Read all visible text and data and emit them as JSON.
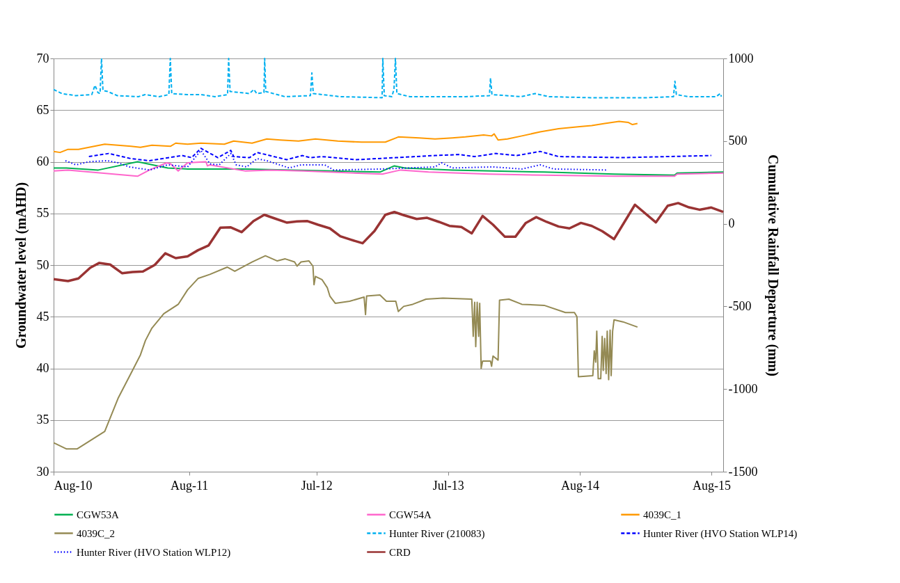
{
  "chart_data": {
    "type": "line",
    "ylabel": "Groundwater level (mAHD)",
    "y2label": "Cumulative Rainfall Departure (mm)",
    "xlim": [
      "2010-08-01",
      "2015-09-03"
    ],
    "xticks": [
      {
        "value": "2010-08-01",
        "label": "Aug-10"
      },
      {
        "value": "2011-08-12",
        "label": "Aug-11"
      },
      {
        "value": "2012-07-31",
        "label": "Jul-12"
      },
      {
        "value": "2013-07-31",
        "label": "Jul-13"
      },
      {
        "value": "2014-08-01",
        "label": "Aug-14"
      },
      {
        "value": "2015-08-01",
        "label": "Aug-15"
      }
    ],
    "ylim": [
      30,
      70
    ],
    "yticks": [
      30,
      35,
      40,
      45,
      50,
      55,
      60,
      65,
      70
    ],
    "y2lim": [
      -1500,
      1000
    ],
    "y2ticks": [
      -1500,
      -1000,
      -500,
      0,
      500,
      1000
    ],
    "grid": "y",
    "legend": "bottom",
    "series": [
      {
        "name": "CGW53A",
        "color": "#00b050",
        "x": [
          "2010-08-01",
          "2010-09-06",
          "2010-12-03",
          "2011-03-22",
          "2011-06-14",
          "2011-08-08",
          "2012-01-16",
          "2013-01-23",
          "2013-03-04",
          "2013-04-02",
          "2013-08-12",
          "2014-04-24",
          "2014-11-04",
          "2015-04-21",
          "2015-04-28",
          "2015-09-03"
        ],
        "values": [
          59.4,
          59.4,
          59.2,
          60.0,
          59.4,
          59.3,
          59.3,
          59.0,
          59.6,
          59.4,
          59.2,
          59.0,
          58.8,
          58.7,
          58.9,
          59.0
        ]
      },
      {
        "name": "CGW54A",
        "color": "#ff66cc",
        "x": [
          "2010-08-01",
          "2010-09-10",
          "2011-03-22",
          "2011-04-24",
          "2011-06-11",
          "2011-06-22",
          "2011-07-13",
          "2011-08-08",
          "2011-09-28",
          "2011-10-02",
          "2011-10-09",
          "2012-01-16",
          "2012-03-26",
          "2012-06-25",
          "2013-01-30",
          "2013-03-08",
          "2013-03-22",
          "2013-06-07",
          "2013-11-22",
          "2014-04-24",
          "2014-11-04",
          "2015-04-21",
          "2015-04-28",
          "2015-09-03"
        ],
        "values": [
          59.1,
          59.2,
          58.6,
          59.2,
          59.9,
          59.8,
          59.1,
          59.9,
          60.0,
          59.6,
          59.7,
          59.1,
          59.2,
          59.1,
          58.8,
          59.1,
          59.2,
          59.0,
          58.8,
          58.7,
          58.6,
          58.6,
          58.8,
          58.9
        ]
      },
      {
        "name": "4039C_1",
        "color": "#ff9900",
        "x": [
          "2010-08-01",
          "2010-08-19",
          "2010-09-10",
          "2010-10-09",
          "2010-12-21",
          "2011-03-04",
          "2011-03-30",
          "2011-05-01",
          "2011-06-22",
          "2011-07-06",
          "2011-08-08",
          "2011-09-14",
          "2011-11-18",
          "2011-12-14",
          "2012-02-03",
          "2012-03-15",
          "2012-04-21",
          "2012-06-11",
          "2012-07-28",
          "2012-09-28",
          "2012-12-03",
          "2013-02-07",
          "2013-03-08",
          "2013-03-15",
          "2013-05-12",
          "2013-06-25",
          "2013-08-12",
          "2013-09-17",
          "2013-11-07",
          "2013-11-29",
          "2013-12-06",
          "2013-12-17",
          "2014-01-12",
          "2014-02-21",
          "2014-04-13",
          "2014-06-03",
          "2014-08-01",
          "2014-09-03",
          "2014-10-09",
          "2014-11-18",
          "2014-12-14",
          "2014-12-25",
          "2015-01-08"
        ],
        "values": [
          61.0,
          60.9,
          61.2,
          61.2,
          61.7,
          61.5,
          61.4,
          61.6,
          61.5,
          61.8,
          61.7,
          61.8,
          61.7,
          62.0,
          61.8,
          62.2,
          62.1,
          62.0,
          62.2,
          62.0,
          61.9,
          61.9,
          62.3,
          62.4,
          62.3,
          62.2,
          62.3,
          62.4,
          62.6,
          62.5,
          62.7,
          62.1,
          62.2,
          62.5,
          62.9,
          63.2,
          63.4,
          63.5,
          63.7,
          63.9,
          63.8,
          63.6,
          63.7
        ]
      },
      {
        "name": "4039C_2",
        "color": "#948a54",
        "x": [
          "2010-08-01",
          "2010-09-06",
          "2010-10-05",
          "2010-12-21",
          "2011-01-27",
          "2011-03-08",
          "2011-03-30",
          "2011-04-13",
          "2011-05-01",
          "2011-06-03",
          "2011-07-13",
          "2011-08-08",
          "2011-09-06",
          "2011-10-09",
          "2011-11-26",
          "2011-12-17",
          "2012-02-03",
          "2012-03-11",
          "2012-04-13",
          "2012-05-05",
          "2012-05-31",
          "2012-06-07",
          "2012-06-18",
          "2012-07-10",
          "2012-07-21",
          "2012-07-24",
          "2012-07-28",
          "2012-08-15",
          "2012-08-30",
          "2012-09-06",
          "2012-09-21",
          "2012-10-31",
          "2012-12-10",
          "2012-12-14",
          "2012-12-17",
          "2013-01-23",
          "2013-02-10",
          "2013-03-08",
          "2013-03-15",
          "2013-03-30",
          "2013-04-24",
          "2013-05-31",
          "2013-07-17",
          "2013-10-05",
          "2013-10-09",
          "2013-10-13",
          "2013-10-16",
          "2013-10-20",
          "2013-10-24",
          "2013-10-27",
          "2013-10-31",
          "2013-11-04",
          "2013-11-26",
          "2013-11-29",
          "2013-12-03",
          "2013-12-17",
          "2013-12-21",
          "2014-01-16",
          "2014-02-21",
          "2014-04-24",
          "2014-06-22",
          "2014-07-17",
          "2014-07-24",
          "2014-07-28",
          "2014-09-06",
          "2014-09-10",
          "2014-09-14",
          "2014-09-17",
          "2014-09-21",
          "2014-09-28",
          "2014-10-02",
          "2014-10-05",
          "2014-10-09",
          "2014-10-13",
          "2014-10-16",
          "2014-10-20",
          "2014-10-24",
          "2014-10-27",
          "2014-10-31",
          "2014-11-04",
          "2014-11-29",
          "2015-01-08"
        ],
        "values": [
          32.8,
          32.2,
          32.2,
          33.9,
          37.1,
          39.8,
          41.3,
          42.7,
          43.9,
          45.3,
          46.2,
          47.6,
          48.7,
          49.1,
          49.8,
          49.4,
          50.3,
          50.9,
          50.4,
          50.6,
          50.3,
          49.9,
          50.3,
          50.4,
          49.9,
          48.1,
          48.9,
          48.6,
          47.8,
          47.0,
          46.3,
          46.5,
          46.9,
          45.2,
          47.0,
          47.1,
          46.5,
          46.5,
          45.5,
          46.0,
          46.2,
          46.7,
          46.8,
          46.7,
          43.1,
          46.4,
          42.1,
          46.4,
          43.1,
          46.3,
          40.0,
          40.7,
          40.7,
          40.2,
          41.2,
          40.8,
          46.6,
          46.7,
          46.2,
          46.1,
          45.4,
          45.4,
          45.0,
          39.2,
          39.3,
          41.7,
          40.6,
          43.6,
          39.0,
          39.0,
          43.1,
          39.8,
          42.9,
          39.5,
          43.6,
          38.9,
          43.7,
          39.3,
          43.6,
          44.7,
          44.5,
          44.0
        ]
      },
      {
        "name": "Hunter River (210083)",
        "color": "#00b0f0",
        "line_style": "dashed",
        "x": [
          "2010-08-01",
          "2010-08-24",
          "2010-10-01",
          "2010-11-15",
          "2010-11-24",
          "2010-12-02",
          "2010-12-08",
          "2010-12-12",
          "2010-12-16",
          "2010-12-29",
          "2011-01-25",
          "2011-03-24",
          "2011-04-12",
          "2011-05-21",
          "2011-06-17",
          "2011-06-21",
          "2011-06-25",
          "2011-08-07",
          "2011-09-14",
          "2011-10-23",
          "2011-11-27",
          "2011-11-30",
          "2011-12-04",
          "2012-01-27",
          "2012-02-08",
          "2012-02-16",
          "2012-03-07",
          "2012-03-09",
          "2012-03-12",
          "2012-05-04",
          "2012-07-14",
          "2012-07-18",
          "2012-07-22",
          "2012-10-05",
          "2013-01-29",
          "2013-01-31",
          "2013-02-04",
          "2013-02-25",
          "2013-03-03",
          "2013-03-07",
          "2013-03-11",
          "2013-04-16",
          "2013-07-03",
          "2013-09-18",
          "2013-11-23",
          "2013-11-26",
          "2013-11-30",
          "2014-02-19",
          "2014-03-30",
          "2014-05-07",
          "2014-08-31",
          "2015-02-02",
          "2015-04-18",
          "2015-04-22",
          "2015-04-26",
          "2015-05-29",
          "2015-07-06",
          "2015-08-14",
          "2015-08-26",
          "2015-08-29"
        ],
        "values": [
          67.0,
          66.6,
          66.4,
          66.5,
          67.4,
          66.7,
          66.6,
          70.0,
          66.9,
          66.8,
          66.4,
          66.3,
          66.5,
          66.3,
          66.5,
          70.0,
          66.6,
          66.5,
          66.5,
          66.3,
          66.5,
          70.0,
          66.8,
          66.6,
          67.0,
          66.6,
          66.7,
          70.0,
          66.8,
          66.3,
          66.4,
          68.6,
          66.6,
          66.3,
          66.2,
          70.0,
          66.4,
          66.3,
          67.0,
          70.0,
          66.6,
          66.3,
          66.3,
          66.3,
          66.4,
          68.1,
          66.5,
          66.3,
          66.6,
          66.3,
          66.2,
          66.2,
          66.3,
          67.8,
          66.5,
          66.3,
          66.3,
          66.3,
          66.6,
          66.3
        ]
      },
      {
        "name": "Hunter River (HVO Station WLP14)",
        "color": "#0000ff",
        "line_style": "dashed",
        "x": [
          "2010-11-07",
          "2011-01-01",
          "2011-03-04",
          "2011-04-24",
          "2011-07-24",
          "2011-08-19",
          "2011-09-14",
          "2011-10-31",
          "2011-12-06",
          "2011-12-14",
          "2012-01-27",
          "2012-02-17",
          "2012-05-09",
          "2012-06-22",
          "2012-07-13",
          "2012-08-15",
          "2012-11-18",
          "2013-03-08",
          "2013-06-25",
          "2013-08-30",
          "2013-10-13",
          "2013-12-10",
          "2014-02-07",
          "2014-04-13",
          "2014-06-03",
          "2014-11-29",
          "2015-08-01"
        ],
        "values": [
          60.5,
          60.8,
          60.3,
          60.1,
          60.6,
          60.4,
          61.3,
          60.4,
          61.1,
          60.5,
          60.4,
          60.9,
          60.2,
          60.6,
          60.4,
          60.5,
          60.2,
          60.4,
          60.6,
          60.7,
          60.5,
          60.8,
          60.6,
          61.0,
          60.5,
          60.4,
          60.6
        ]
      },
      {
        "name": "Hunter River (HVO Station WLP12)",
        "color": "#0000ff",
        "line_style": "dotted",
        "x": [
          "2010-09-03",
          "2010-10-02",
          "2010-11-07",
          "2010-12-28",
          "2011-01-27",
          "2011-02-28",
          "2011-04-24",
          "2011-06-14",
          "2011-08-08",
          "2011-09-14",
          "2011-10-09",
          "2011-11-04",
          "2011-12-06",
          "2011-12-21",
          "2012-01-19",
          "2012-02-17",
          "2012-03-15",
          "2012-05-16",
          "2012-06-18",
          "2012-08-23",
          "2012-09-17",
          "2013-01-30",
          "2013-06-25",
          "2013-07-13",
          "2013-08-12",
          "2013-12-03",
          "2014-02-21",
          "2014-04-13",
          "2014-05-20",
          "2014-10-13"
        ],
        "values": [
          60.1,
          59.7,
          60.0,
          60.1,
          59.9,
          59.5,
          59.2,
          59.7,
          59.5,
          61.1,
          59.8,
          59.7,
          60.8,
          59.7,
          59.5,
          60.3,
          60.1,
          59.4,
          59.7,
          59.7,
          59.2,
          59.3,
          59.5,
          59.9,
          59.4,
          59.5,
          59.3,
          59.7,
          59.3,
          59.2
        ]
      },
      {
        "name": "CRD",
        "color": "#993333",
        "axis": "y2",
        "x": [
          "2010-08-01",
          "2010-09-10",
          "2010-10-09",
          "2010-11-11",
          "2010-12-06",
          "2011-01-05",
          "2011-02-07",
          "2011-03-08",
          "2011-04-06",
          "2011-05-09",
          "2011-06-07",
          "2011-07-06",
          "2011-08-08",
          "2011-09-06",
          "2011-10-05",
          "2011-11-07",
          "2011-12-06",
          "2012-01-05",
          "2012-02-07",
          "2012-03-08",
          "2012-04-06",
          "2012-05-09",
          "2012-06-07",
          "2012-07-06",
          "2012-08-04",
          "2012-09-06",
          "2012-10-05",
          "2012-11-04",
          "2012-12-06",
          "2013-01-08",
          "2013-02-07",
          "2013-03-04",
          "2013-04-02",
          "2013-05-05",
          "2013-06-03",
          "2013-07-06",
          "2013-08-04",
          "2013-09-06",
          "2013-10-05",
          "2013-11-04",
          "2013-12-03",
          "2014-01-05",
          "2014-02-03",
          "2014-03-04",
          "2014-04-02",
          "2014-05-01",
          "2014-06-03",
          "2014-07-03",
          "2014-08-04",
          "2014-09-03",
          "2014-10-02",
          "2014-11-04",
          "2015-01-01",
          "2015-02-28",
          "2015-04-02",
          "2015-05-01",
          "2015-05-31",
          "2015-06-29",
          "2015-08-01",
          "2015-09-03"
        ],
        "values": [
          -335,
          -347,
          -331,
          -266,
          -237,
          -247,
          -299,
          -292,
          -289,
          -249,
          -179,
          -208,
          -197,
          -160,
          -132,
          -24,
          -22,
          -51,
          16,
          54,
          32,
          7,
          14,
          16,
          -6,
          -28,
          -76,
          -97,
          -118,
          -44,
          54,
          71,
          50,
          29,
          36,
          11,
          -13,
          -20,
          -58,
          47,
          -6,
          -79,
          -79,
          5,
          40,
          11,
          -17,
          -28,
          5,
          -13,
          -45,
          -93,
          115,
          8,
          109,
          125,
          99,
          85,
          98,
          71
        ]
      }
    ]
  }
}
